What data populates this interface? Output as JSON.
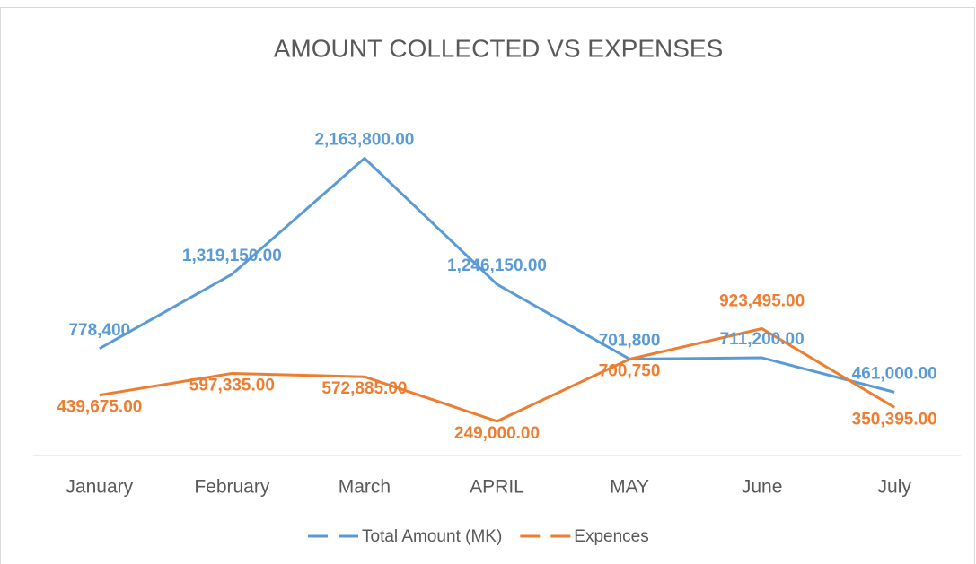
{
  "chart_data": {
    "type": "line",
    "title": "AMOUNT COLLECTED VS EXPENSES",
    "categories": [
      "January",
      "February",
      "March",
      "APRIL",
      "MAY",
      "June",
      "July"
    ],
    "series": [
      {
        "name": "Total Amount (MK)",
        "color": "#5b9bd5",
        "values": [
          778400,
          1319150,
          2163800,
          1246150,
          701800,
          711200,
          461000
        ],
        "value_labels": [
          "778,400",
          "1,319,150.00",
          "2,163,800.00",
          "1,246,150.00",
          "701,800",
          "711,200.00",
          "461,000.00"
        ]
      },
      {
        "name": "Expences",
        "color": "#ed7d31",
        "values": [
          439675,
          597335,
          572885,
          249000,
          700750,
          923495,
          350395
        ],
        "value_labels": [
          "439,675.00",
          "597,335.00",
          "572,885.00",
          "249,000.00",
          "700,750",
          "923,495.00",
          "350,395.00"
        ]
      }
    ],
    "ylim": [
      0,
      2500000
    ],
    "legend": "bottom"
  }
}
